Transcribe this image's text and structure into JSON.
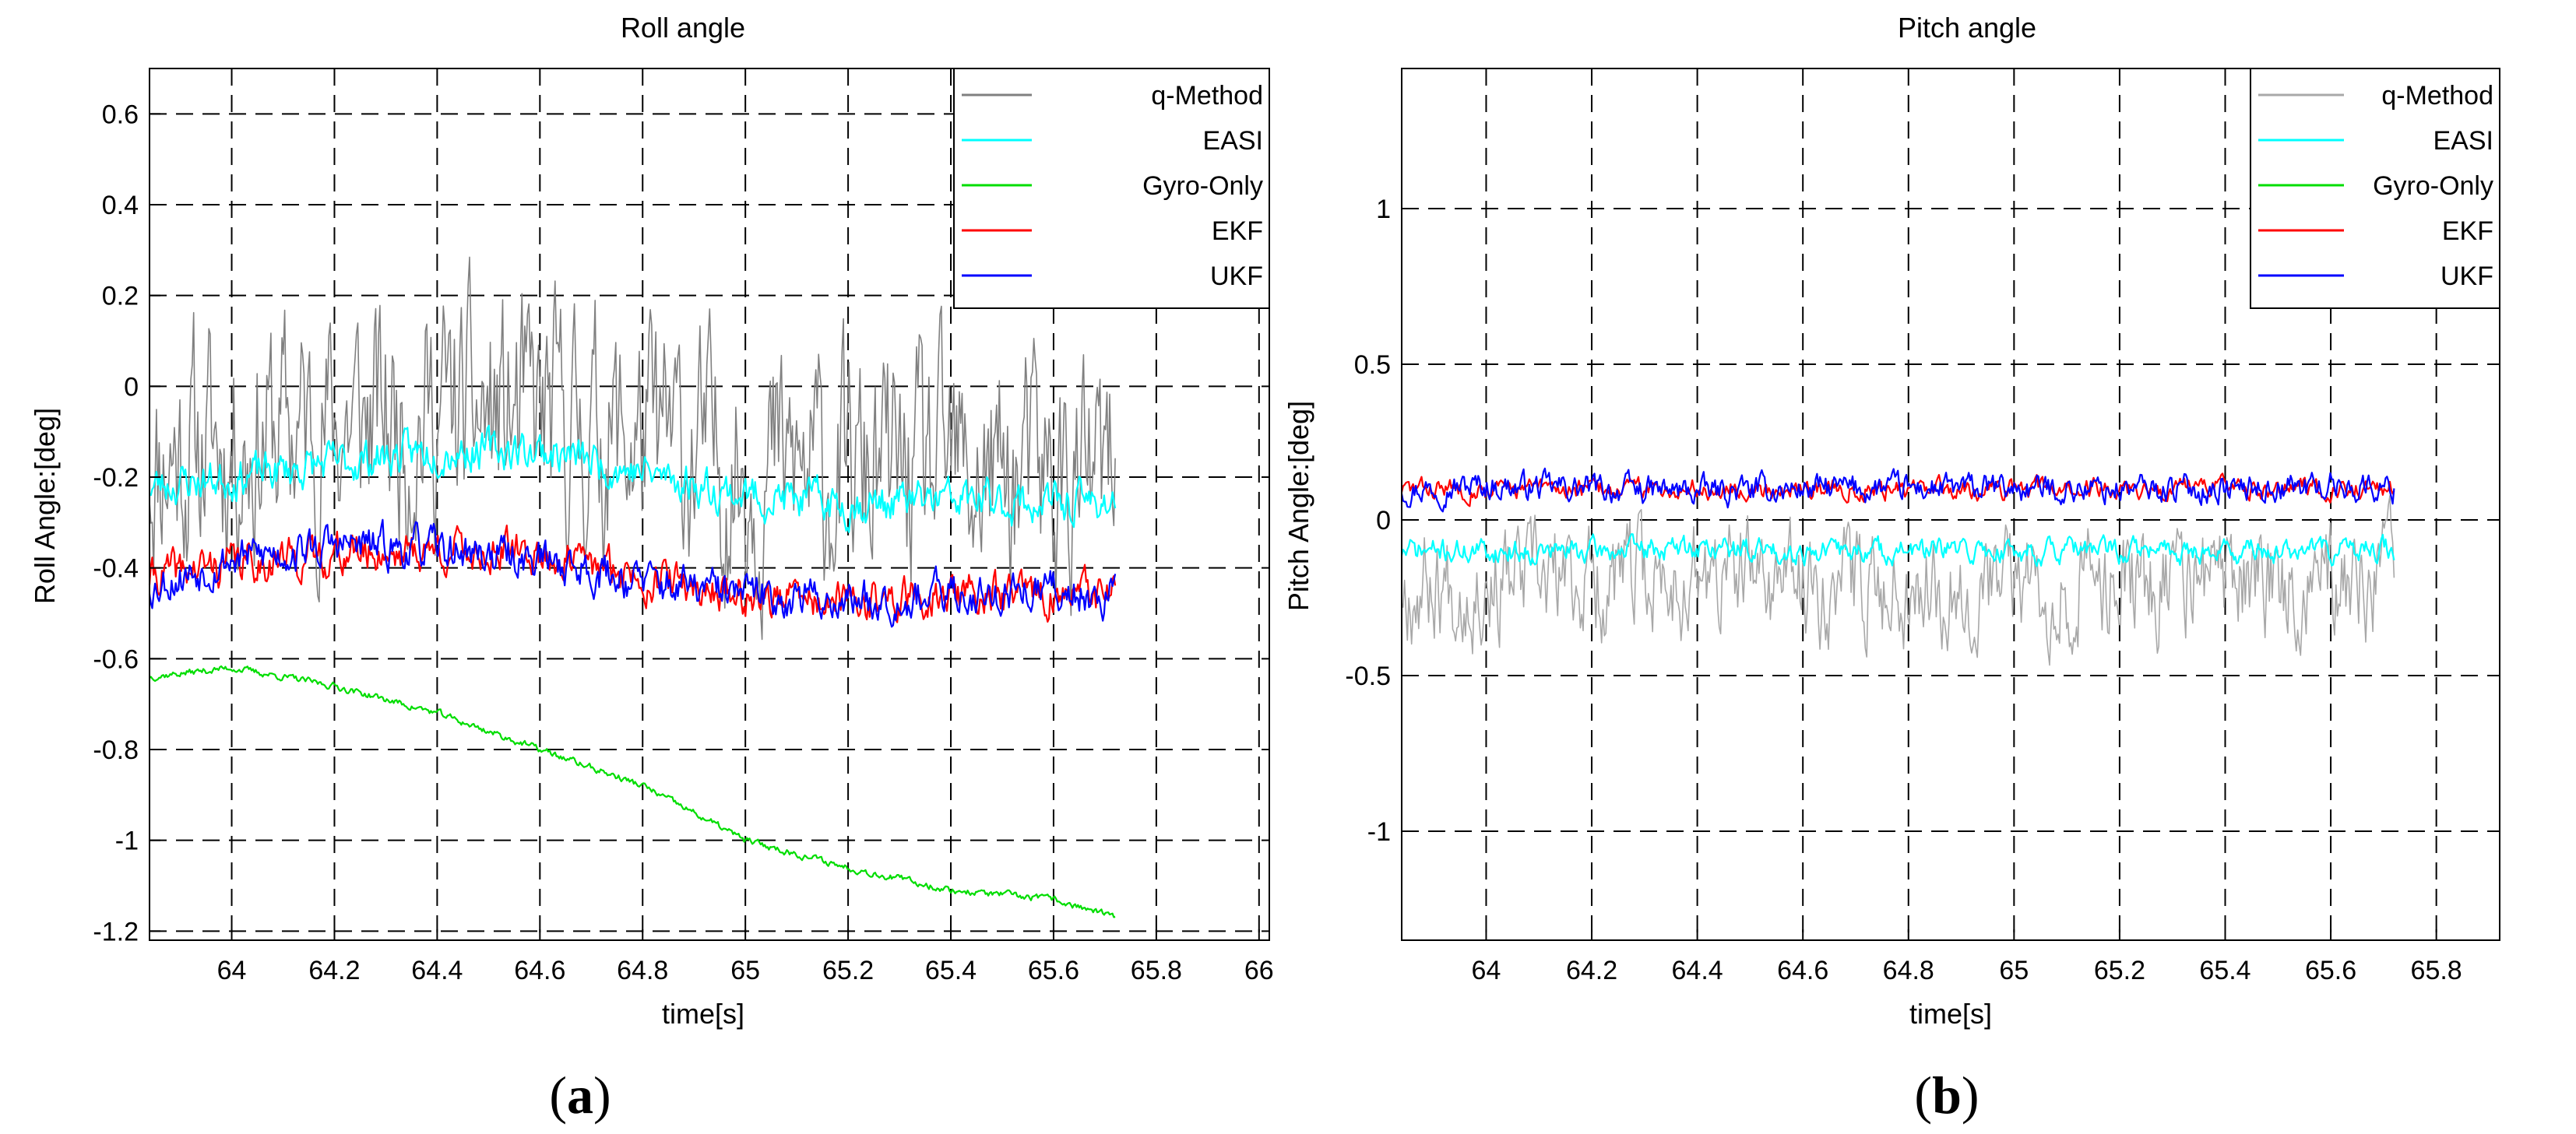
{
  "chart_data": [
    {
      "type": "line",
      "panel_letter": "a",
      "title": "Roll angle",
      "xlabel": "time[s]",
      "ylabel": "Roll Angle:[deg]",
      "xlim": [
        63.84,
        66.02
      ],
      "ylim": [
        -1.22,
        0.7
      ],
      "xticks": [
        64,
        64.2,
        64.4,
        64.6,
        64.8,
        65,
        65.2,
        65.4,
        65.6,
        65.8,
        66
      ],
      "xtick_labels": [
        "64",
        "64.2",
        "64.4",
        "64.6",
        "64.8",
        "65",
        "65.2",
        "65.4",
        "65.6",
        "65.8",
        "66"
      ],
      "yticks": [
        0.6,
        0.4,
        0.2,
        0,
        -0.2,
        -0.4,
        -0.6,
        -0.8,
        -1,
        -1.2
      ],
      "ytick_labels": [
        "0.6",
        "0.4",
        "0.2",
        "0",
        "-0.2",
        "-0.4",
        "-0.6",
        "-0.8",
        "-1",
        "-1.2"
      ],
      "grid": true,
      "legend_position": "top-right",
      "series": [
        {
          "name": "q-Method",
          "color": "#808080",
          "x": [
            63.84,
            64.0,
            64.2,
            64.4,
            64.6,
            64.8,
            65.0,
            65.2,
            65.4,
            65.6,
            65.72
          ],
          "y": [
            -0.15,
            -0.12,
            -0.08,
            -0.06,
            -0.08,
            -0.12,
            -0.18,
            -0.2,
            -0.2,
            -0.21,
            -0.22
          ],
          "noise": 0.2,
          "seed": 11
        },
        {
          "name": "EASI",
          "color": "#00ffff",
          "x": [
            63.84,
            64.0,
            64.2,
            64.4,
            64.6,
            64.8,
            65.0,
            65.2,
            65.4,
            65.6,
            65.72
          ],
          "y": [
            -0.22,
            -0.2,
            -0.17,
            -0.14,
            -0.14,
            -0.19,
            -0.24,
            -0.26,
            -0.25,
            -0.26,
            -0.25
          ],
          "noise": 0.035,
          "seed": 23
        },
        {
          "name": "Gyro-Only",
          "color": "#00dd00",
          "x": [
            63.84,
            64.0,
            64.2,
            64.4,
            64.6,
            64.8,
            65.0,
            65.2,
            65.4,
            65.6,
            65.72
          ],
          "y": [
            -0.64,
            -0.62,
            -0.66,
            -0.72,
            -0.8,
            -0.88,
            -1.0,
            -1.06,
            -1.11,
            -1.13,
            -1.17
          ],
          "noise": 0.006,
          "seed": 37
        },
        {
          "name": "EKF",
          "color": "#ff0000",
          "x": [
            63.84,
            64.0,
            64.2,
            64.4,
            64.6,
            64.8,
            65.0,
            65.2,
            65.4,
            65.6,
            65.72
          ],
          "y": [
            -0.42,
            -0.39,
            -0.37,
            -0.36,
            -0.37,
            -0.42,
            -0.46,
            -0.48,
            -0.46,
            -0.46,
            -0.46
          ],
          "noise": 0.035,
          "seed": 41
        },
        {
          "name": "UKF",
          "color": "#0000ff",
          "x": [
            63.84,
            64.0,
            64.2,
            64.4,
            64.6,
            64.8,
            65.0,
            65.2,
            65.4,
            65.6,
            65.72
          ],
          "y": [
            -0.44,
            -0.38,
            -0.35,
            -0.36,
            -0.38,
            -0.43,
            -0.46,
            -0.47,
            -0.46,
            -0.45,
            -0.46
          ],
          "noise": 0.035,
          "seed": 53
        }
      ]
    },
    {
      "type": "line",
      "panel_letter": "b",
      "title": "Pitch angle",
      "xlabel": "time[s]",
      "ylabel": "Pitch Angle:[deg]",
      "xlim": [
        63.84,
        65.92
      ],
      "ylim": [
        -1.35,
        1.45
      ],
      "xticks": [
        64,
        64.2,
        64.4,
        64.6,
        64.8,
        65,
        65.2,
        65.4,
        65.6,
        65.8
      ],
      "xtick_labels": [
        "64",
        "64.2",
        "64.4",
        "64.6",
        "64.8",
        "65",
        "65.2",
        "65.4",
        "65.6",
        "65.8"
      ],
      "yticks": [
        1,
        0.5,
        0,
        -0.5,
        -1
      ],
      "ytick_labels": [
        "1",
        "0.5",
        "0",
        "-0.5",
        "-1"
      ],
      "grid": true,
      "legend_position": "top-right",
      "series": [
        {
          "name": "q-Method",
          "color": "#a8a8a8",
          "x": [
            63.84,
            64.0,
            64.2,
            64.4,
            64.6,
            64.8,
            65.0,
            65.2,
            65.4,
            65.6,
            65.72
          ],
          "y": [
            -0.2,
            -0.2,
            -0.2,
            -0.19,
            -0.2,
            -0.2,
            -0.21,
            -0.2,
            -0.2,
            -0.2,
            -0.2
          ],
          "noise": 0.14,
          "seed": 67
        },
        {
          "name": "EASI",
          "color": "#00ffff",
          "x": [
            63.84,
            64.0,
            64.2,
            64.4,
            64.6,
            64.8,
            65.0,
            65.2,
            65.4,
            65.6,
            65.72
          ],
          "y": [
            -0.1,
            -0.1,
            -0.1,
            -0.09,
            -0.1,
            -0.1,
            -0.1,
            -0.1,
            -0.1,
            -0.1,
            -0.1
          ],
          "noise": 0.03,
          "seed": 71
        },
        {
          "name": "Gyro-Only",
          "color": "#00dd00",
          "x": [],
          "y": [],
          "noise": 0,
          "seed": 0
        },
        {
          "name": "EKF",
          "color": "#ff0000",
          "x": [
            63.84,
            64.0,
            64.2,
            64.4,
            64.6,
            64.8,
            65.0,
            65.2,
            65.4,
            65.6,
            65.72
          ],
          "y": [
            0.1,
            0.1,
            0.1,
            0.1,
            0.1,
            0.1,
            0.1,
            0.1,
            0.1,
            0.1,
            0.1
          ],
          "noise": 0.025,
          "seed": 83
        },
        {
          "name": "UKF",
          "color": "#0000ff",
          "x": [
            63.84,
            64.0,
            64.2,
            64.4,
            64.6,
            64.8,
            65.0,
            65.2,
            65.4,
            65.6,
            65.72
          ],
          "y": [
            0.1,
            0.11,
            0.1,
            0.09,
            0.1,
            0.1,
            0.1,
            0.1,
            0.1,
            0.11,
            0.1
          ],
          "noise": 0.035,
          "seed": 97
        }
      ]
    }
  ]
}
